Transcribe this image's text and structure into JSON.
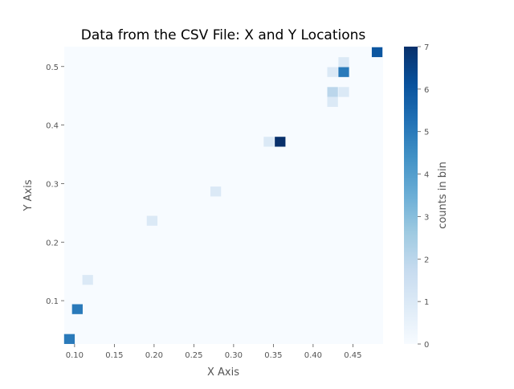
{
  "chart_data": {
    "type": "heatmap",
    "title": "Data from the CSV File: X and Y Locations",
    "xlabel": "X Axis",
    "ylabel": "Y Axis",
    "xlim": [
      0.087,
      0.488
    ],
    "ylim": [
      0.026,
      0.534
    ],
    "x_ticks": [
      0.1,
      0.15,
      0.2,
      0.25,
      0.3,
      0.35,
      0.4,
      0.45
    ],
    "x_tick_labels": [
      "0.10",
      "0.15",
      "0.20",
      "0.25",
      "0.30",
      "0.35",
      "0.40",
      "0.45"
    ],
    "y_ticks": [
      0.1,
      0.2,
      0.3,
      0.4,
      0.5
    ],
    "y_tick_labels": [
      "0.1",
      "0.2",
      "0.3",
      "0.4",
      "0.5"
    ],
    "bin_width": 0.0134,
    "bin_height": 0.0169,
    "colorbar": {
      "label": "counts in bin",
      "min": 0,
      "max": 7,
      "ticks": [
        0,
        1,
        2,
        3,
        4,
        5,
        6,
        7
      ],
      "tick_labels": [
        "0",
        "1",
        "2",
        "3",
        "4",
        "5",
        "6",
        "7"
      ],
      "colormap": "Blues"
    },
    "cells": [
      {
        "x": 0.0935,
        "y": 0.0345,
        "count": 5
      },
      {
        "x": 0.1035,
        "y": 0.0855,
        "count": 5
      },
      {
        "x": 0.1165,
        "y": 0.1355,
        "count": 1
      },
      {
        "x": 0.1975,
        "y": 0.2365,
        "count": 1
      },
      {
        "x": 0.2775,
        "y": 0.2865,
        "count": 1
      },
      {
        "x": 0.3445,
        "y": 0.3715,
        "count": 1
      },
      {
        "x": 0.3585,
        "y": 0.3715,
        "count": 7
      },
      {
        "x": 0.4245,
        "y": 0.4395,
        "count": 1
      },
      {
        "x": 0.4245,
        "y": 0.4565,
        "count": 2
      },
      {
        "x": 0.4385,
        "y": 0.4565,
        "count": 1
      },
      {
        "x": 0.4245,
        "y": 0.4905,
        "count": 1
      },
      {
        "x": 0.4385,
        "y": 0.4905,
        "count": 5
      },
      {
        "x": 0.4385,
        "y": 0.5075,
        "count": 1
      },
      {
        "x": 0.4805,
        "y": 0.5245,
        "count": 6
      }
    ]
  }
}
